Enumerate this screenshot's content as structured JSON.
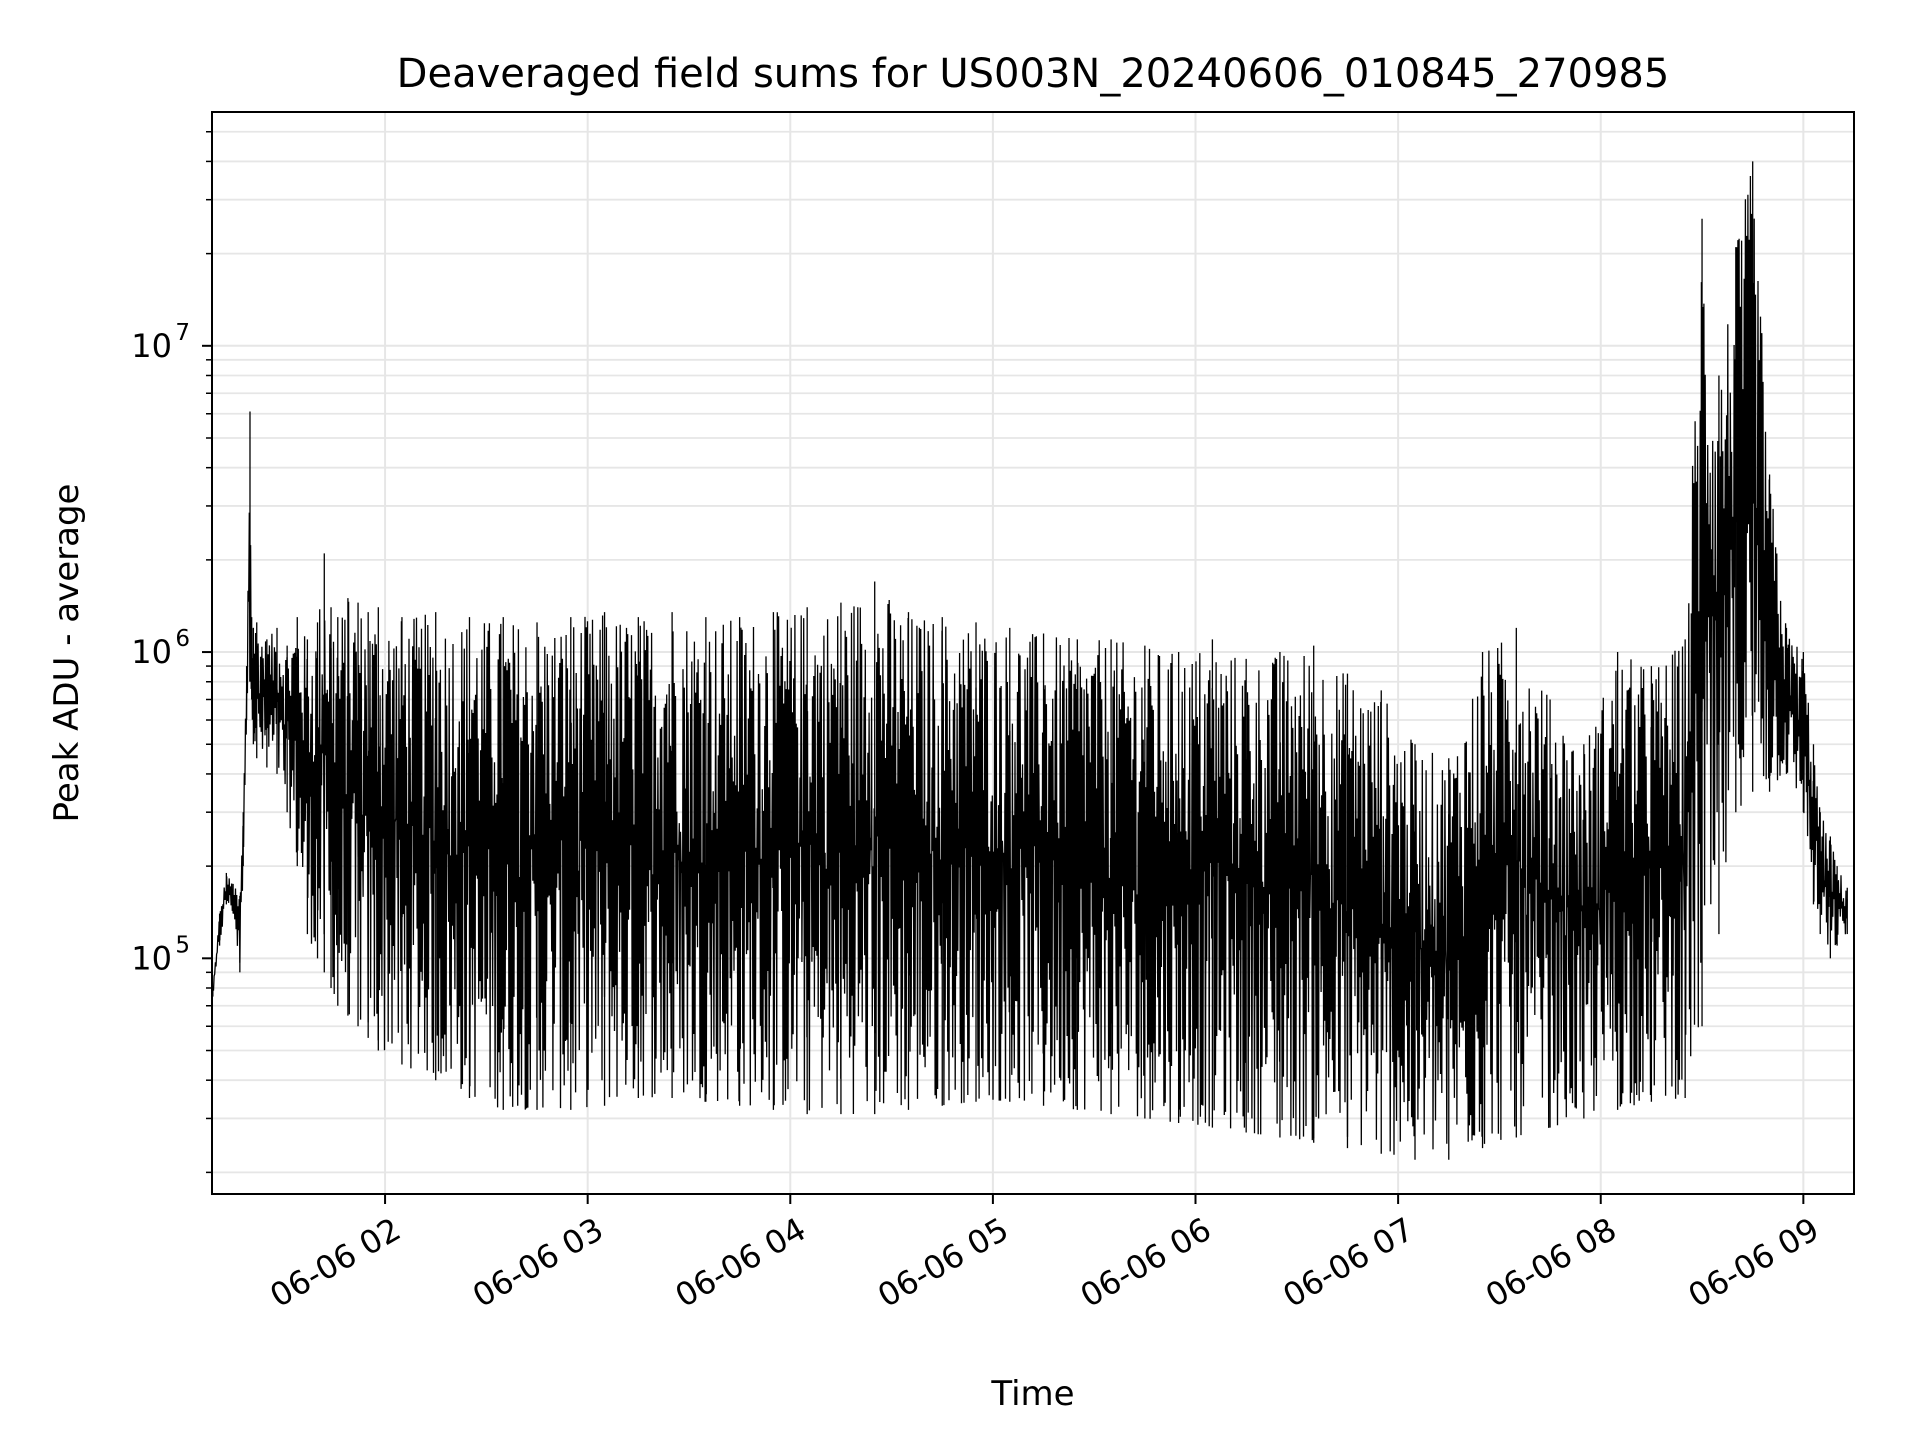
{
  "chart_data": {
    "type": "line",
    "title": "Deaveraged field sums for US003N_20240606_010845_270985",
    "xlabel": "Time",
    "ylabel": "Peak ADU - average",
    "yscale": "log",
    "ylim": [
      17000,
      58000000
    ],
    "xlim": [
      "2024-06-06 01:08:45",
      "2024-06-06 09:15:00"
    ],
    "x_tick_labels": [
      "06-06 02",
      "06-06 03",
      "06-06 04",
      "06-06 05",
      "06-06 06",
      "06-06 07",
      "06-06 08",
      "06-06 09"
    ],
    "x_tick_values": [
      "2024-06-06 02:00",
      "2024-06-06 03:00",
      "2024-06-06 04:00",
      "2024-06-06 05:00",
      "2024-06-06 06:00",
      "2024-06-06 07:00",
      "2024-06-06 08:00",
      "2024-06-06 09:00"
    ],
    "y_tick_labels": [
      {
        "base": "10",
        "exp": "5",
        "value": 100000
      },
      {
        "base": "10",
        "exp": "6",
        "value": 1000000
      },
      {
        "base": "10",
        "exp": "7",
        "value": 10000000
      }
    ],
    "grid": true,
    "line_color": "#000000",
    "series": [
      {
        "x": [
          "2024-06-06 01:09",
          "2024-06-06 01:11",
          "2024-06-06 01:13",
          "2024-06-06 01:15",
          "2024-06-06 01:17",
          "2024-06-06 01:18",
          "2024-06-06 01:19",
          "2024-06-06 01:20",
          "2024-06-06 01:20:30",
          "2024-06-06 01:21",
          "2024-06-06 01:22",
          "2024-06-06 01:25",
          "2024-06-06 01:28",
          "2024-06-06 01:31",
          "2024-06-06 01:34",
          "2024-06-06 01:37",
          "2024-06-06 01:40",
          "2024-06-06 01:42",
          "2024-06-06 01:44",
          "2024-06-06 01:46",
          "2024-06-06 01:49",
          "2024-06-06 01:52",
          "2024-06-06 01:55",
          "2024-06-06 01:58",
          "2024-06-06 02:05",
          "2024-06-06 02:15",
          "2024-06-06 02:25",
          "2024-06-06 02:35",
          "2024-06-06 02:45",
          "2024-06-06 02:55",
          "2024-06-06 03:05",
          "2024-06-06 03:15",
          "2024-06-06 03:25",
          "2024-06-06 03:35",
          "2024-06-06 03:45",
          "2024-06-06 03:55",
          "2024-06-06 04:05",
          "2024-06-06 04:15",
          "2024-06-06 04:25",
          "2024-06-06 04:35",
          "2024-06-06 04:45",
          "2024-06-06 04:55",
          "2024-06-06 05:05",
          "2024-06-06 05:15",
          "2024-06-06 05:25",
          "2024-06-06 05:35",
          "2024-06-06 05:45",
          "2024-06-06 05:55",
          "2024-06-06 06:05",
          "2024-06-06 06:15",
          "2024-06-06 06:25",
          "2024-06-06 06:35",
          "2024-06-06 06:45",
          "2024-06-06 06:55",
          "2024-06-06 07:05",
          "2024-06-06 07:15",
          "2024-06-06 07:25",
          "2024-06-06 07:35",
          "2024-06-06 07:45",
          "2024-06-06 07:55",
          "2024-06-06 08:05",
          "2024-06-06 08:15",
          "2024-06-06 08:25",
          "2024-06-06 08:30",
          "2024-06-06 08:35",
          "2024-06-06 08:40",
          "2024-06-06 08:45",
          "2024-06-06 08:50",
          "2024-06-06 08:55",
          "2024-06-06 09:00",
          "2024-06-06 09:03",
          "2024-06-06 09:05",
          "2024-06-06 09:08",
          "2024-06-06 09:10",
          "2024-06-06 09:13"
        ],
        "y_high": [
          80000,
          140000,
          190000,
          175000,
          160000,
          300000,
          900000,
          6100000,
          1300000,
          1200000,
          1250000,
          1100000,
          1200000,
          1050000,
          1300000,
          1100000,
          1250000,
          2100000,
          1400000,
          1300000,
          1500000,
          1450000,
          1350000,
          1400000,
          1300000,
          1350000,
          1300000,
          1300000,
          1250000,
          1300000,
          1350000,
          1300000,
          1350000,
          1300000,
          1300000,
          1350000,
          1400000,
          1450000,
          1700000,
          1350000,
          1300000,
          1250000,
          1200000,
          1150000,
          1100000,
          1100000,
          1050000,
          1000000,
          1100000,
          950000,
          1000000,
          1050000,
          850000,
          750000,
          500000,
          450000,
          1000000,
          1200000,
          700000,
          500000,
          1000000,
          900000,
          1100000,
          26000000,
          8000000,
          21000000,
          40000000,
          3800000,
          1200000,
          1000000,
          500000,
          300000,
          250000,
          200000,
          170000
        ],
        "y_low": [
          75000,
          110000,
          150000,
          140000,
          90000,
          200000,
          600000,
          800000,
          700000,
          500000,
          450000,
          420000,
          400000,
          300000,
          200000,
          120000,
          100000,
          90000,
          80000,
          70000,
          65000,
          60000,
          55000,
          50000,
          45000,
          40000,
          35000,
          32000,
          32000,
          32000,
          33000,
          35000,
          35000,
          34000,
          33000,
          32000,
          31000,
          31000,
          31000,
          32000,
          33000,
          34000,
          34000,
          33000,
          32000,
          31000,
          30000,
          29000,
          28000,
          27000,
          26000,
          25000,
          24000,
          23000,
          22000,
          22000,
          24000,
          26000,
          28000,
          30000,
          32000,
          34000,
          35000,
          60000,
          120000,
          300000,
          350000,
          350000,
          400000,
          300000,
          150000,
          120000,
          100000,
          110000,
          120000
        ]
      }
    ]
  }
}
